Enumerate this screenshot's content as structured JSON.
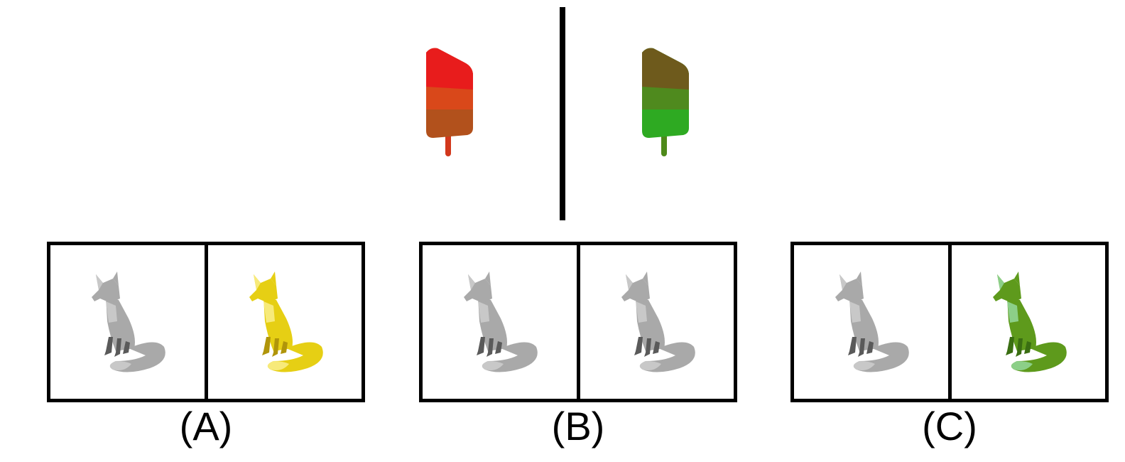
{
  "example": {
    "before": {
      "icon": "popsicle-icon",
      "colors": [
        "#e81c1c",
        "#d9481a",
        "#b2511c"
      ],
      "stick": "#d2381c"
    },
    "after": {
      "icon": "popsicle-icon",
      "colors": [
        "#6e5a1c",
        "#4f8a1e",
        "#2eaa22"
      ],
      "stick": "#4e8a1a"
    }
  },
  "options": [
    {
      "label": "(A)",
      "before": {
        "icon": "fox-icon",
        "color": "gray"
      },
      "after": {
        "icon": "fox-icon",
        "color": "yellow"
      }
    },
    {
      "label": "(B)",
      "before": {
        "icon": "fox-icon",
        "color": "gray"
      },
      "after": {
        "icon": "fox-icon",
        "color": "gray"
      }
    },
    {
      "label": "(C)",
      "before": {
        "icon": "fox-icon",
        "color": "gray"
      },
      "after": {
        "icon": "fox-icon",
        "color": "green"
      }
    }
  ],
  "palette": {
    "gray": {
      "light": "#c8c8c8",
      "mid": "#a9a9a9",
      "dark": "#5a5a5a"
    },
    "yellow": {
      "light": "#f7ea7a",
      "mid": "#e6cf14",
      "dark": "#b0950a"
    },
    "green": {
      "light": "#8ccf88",
      "mid": "#5e9a1c",
      "dark": "#3a6e12"
    }
  }
}
